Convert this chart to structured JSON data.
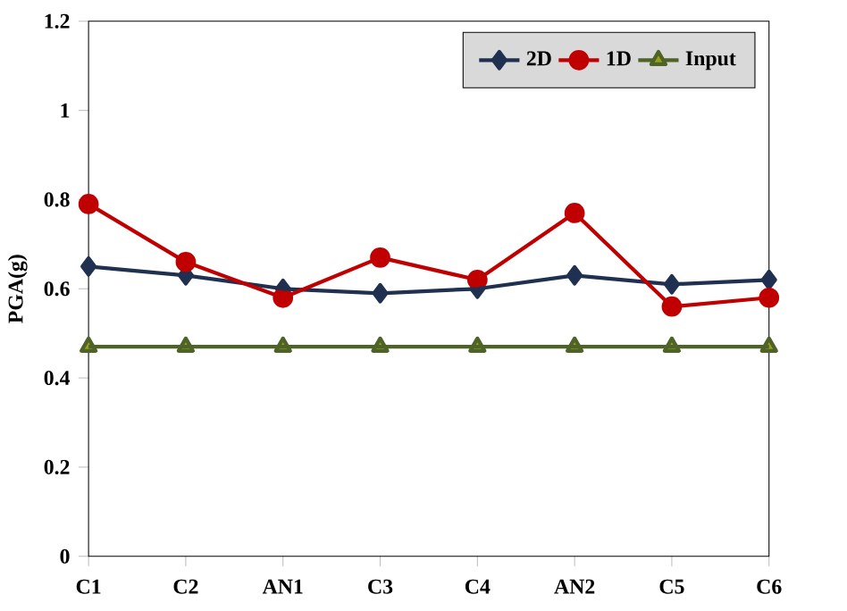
{
  "chart_data": {
    "type": "line",
    "ylabel": "PGA(g)",
    "categories": [
      "C1",
      "C2",
      "AN1",
      "C3",
      "C4",
      "AN2",
      "C5",
      "C6"
    ],
    "series": [
      {
        "name": "2D",
        "color": "#1f3050",
        "marker": "diamond",
        "values": [
          0.65,
          0.63,
          0.6,
          0.59,
          0.6,
          0.63,
          0.61,
          0.62
        ]
      },
      {
        "name": "1D",
        "color": "#c00000",
        "marker": "circle",
        "values": [
          0.79,
          0.66,
          0.58,
          0.67,
          0.62,
          0.77,
          0.56,
          0.58
        ]
      },
      {
        "name": "Input",
        "color": "#4f6228",
        "marker": "triangle",
        "values": [
          0.47,
          0.47,
          0.47,
          0.47,
          0.47,
          0.47,
          0.47,
          0.47
        ]
      }
    ],
    "ylim": [
      0,
      1.2
    ],
    "yticks": [
      0,
      0.2,
      0.4,
      0.6,
      0.8,
      1,
      1.2
    ],
    "grid": false,
    "legend": "top right",
    "line_style": "solid"
  }
}
